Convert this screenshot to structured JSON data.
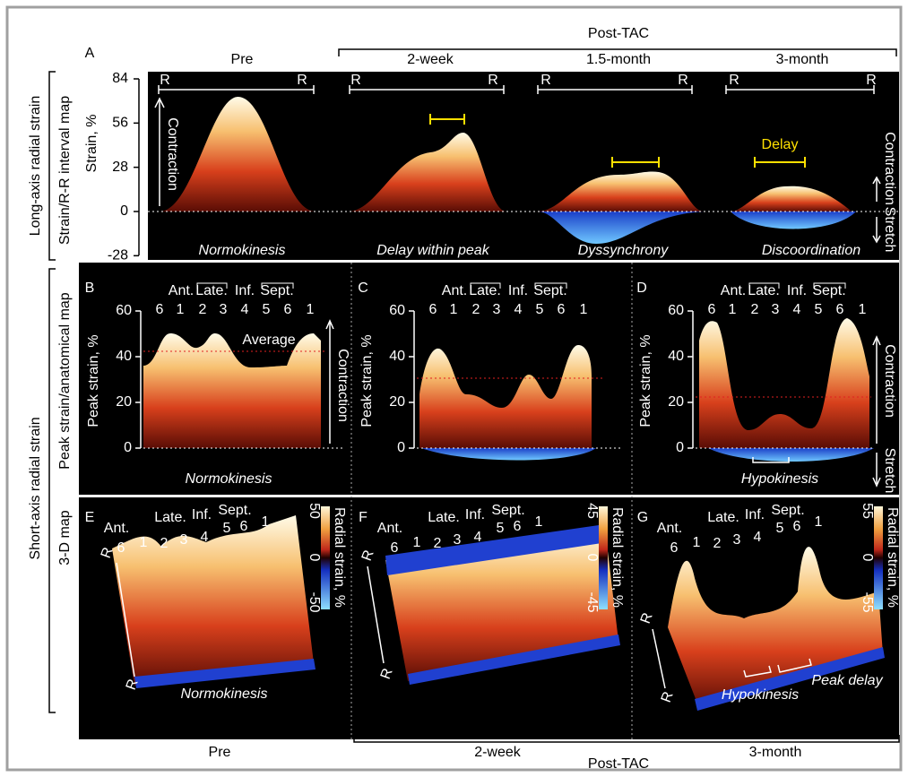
{
  "header": {
    "post_tac": "Post-TAC",
    "columns": [
      "Pre",
      "2-week",
      "1.5-month",
      "3-month"
    ]
  },
  "footer": {
    "columns": [
      "Pre",
      "2-week",
      "3-month"
    ],
    "post_tac": "Post-TAC"
  },
  "row_groups": [
    "Long-axis radial strain",
    "Short-axis radial strain"
  ],
  "row_labels": [
    "Strain/R-R interval map",
    "Peak strain/anatomical map",
    "3-D map"
  ],
  "panel_a": {
    "letter": "A",
    "y_label": "Strain, %",
    "yticks": [
      84,
      56,
      28,
      0,
      -28
    ],
    "r_label": "R",
    "contraction": "Contraction",
    "stretch": "Stretch",
    "delay": "Delay",
    "captions": [
      "Normokinesis",
      "Delay within peak",
      "Dyssynchrony",
      "Discoordination"
    ]
  },
  "row_b": {
    "letters": [
      "B",
      "C",
      "D"
    ],
    "segments": [
      "6",
      "1",
      "2",
      "3",
      "4",
      "5",
      "6",
      "1"
    ],
    "regions": [
      "Ant.",
      "Late.",
      "Inf.",
      "Sept."
    ],
    "y_label": "Peak strain, %",
    "yticks": [
      60,
      40,
      20,
      0
    ],
    "average": "Average",
    "contraction": "Contraction",
    "stretch": "Stretch",
    "captions": [
      "Normokinesis",
      "Hypokinesis"
    ]
  },
  "row_e": {
    "letters": [
      "E",
      "F",
      "G"
    ],
    "colorbar_label": "Radial strain, %",
    "colorbar_ticks": [
      [
        50,
        0,
        -50
      ],
      [
        45,
        0,
        -45
      ],
      [
        55,
        0,
        -55
      ]
    ],
    "r_label": "R",
    "captions": [
      "Normokinesis",
      "Hypokinesis",
      "Peak delay"
    ]
  }
}
